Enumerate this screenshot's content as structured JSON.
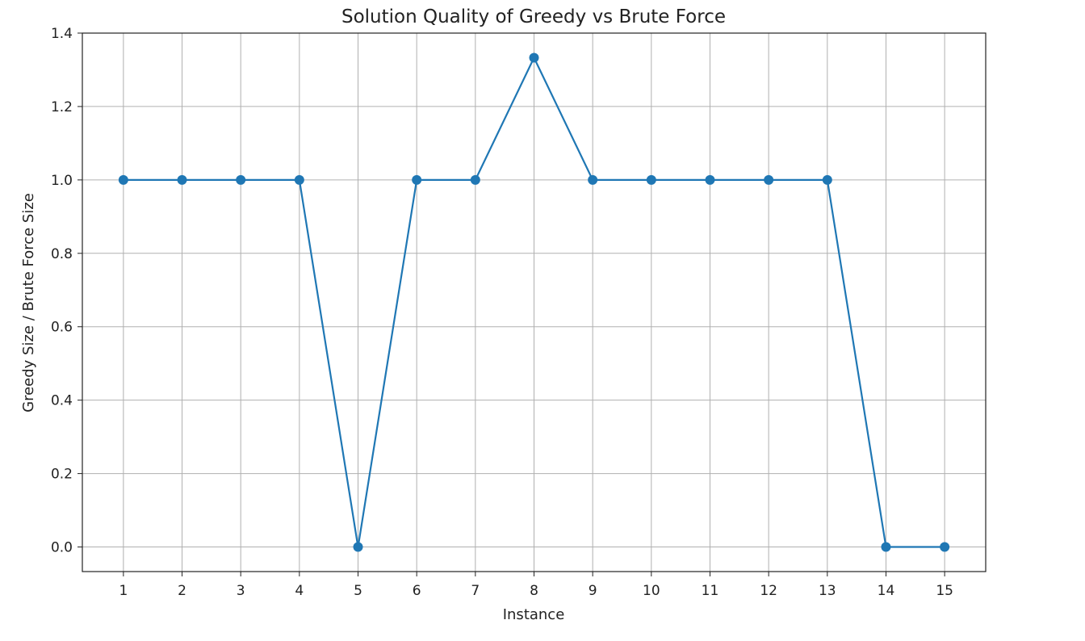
{
  "chart_data": {
    "type": "line",
    "title": "Solution Quality of Greedy vs Brute Force",
    "xlabel": "Instance",
    "ylabel": "Greedy Size / Brute Force Size",
    "x": [
      1,
      2,
      3,
      4,
      5,
      6,
      7,
      8,
      9,
      10,
      11,
      12,
      13,
      14,
      15
    ],
    "xticks": [
      "1",
      "2",
      "3",
      "4",
      "5",
      "6",
      "7",
      "8",
      "9",
      "10",
      "11",
      "12",
      "13",
      "14",
      "15"
    ],
    "yticks": [
      "0.0",
      "0.2",
      "0.4",
      "0.6",
      "0.8",
      "1.0",
      "1.2",
      "1.4"
    ],
    "ytick_values": [
      0.0,
      0.2,
      0.4,
      0.6,
      0.8,
      1.0,
      1.2,
      1.4
    ],
    "xlim": [
      0.3,
      15.7
    ],
    "ylim": [
      -0.067,
      1.4
    ],
    "grid": true,
    "series": [
      {
        "values": [
          1.0,
          1.0,
          1.0,
          1.0,
          0.0,
          1.0,
          1.0,
          1.333,
          1.0,
          1.0,
          1.0,
          1.0,
          1.0,
          0.0,
          0.0
        ],
        "color": "#1f77b4",
        "marker": "circle"
      }
    ]
  }
}
